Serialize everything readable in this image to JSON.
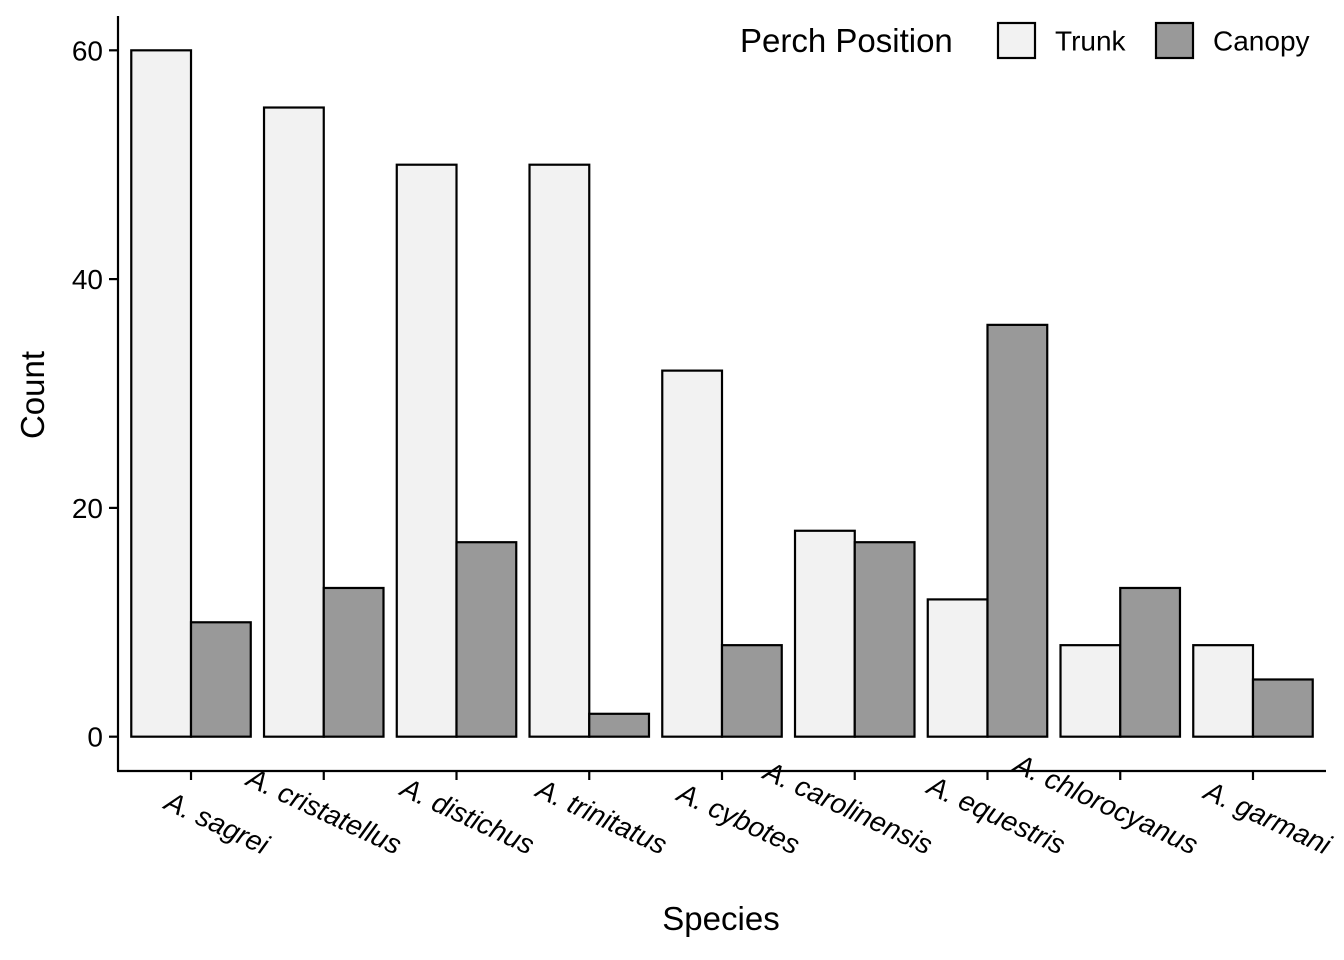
{
  "chart_data": {
    "type": "bar",
    "title": "",
    "xlabel": "Species",
    "ylabel": "Count",
    "ylim": [
      -3,
      63
    ],
    "yticks": [
      0,
      20,
      40,
      60
    ],
    "grid": false,
    "legend": {
      "title": "Perch Position",
      "position": "top-right"
    },
    "categories": [
      "A. sagrei",
      "A. cristatellus",
      "A. distichus",
      "A. trinitatus",
      "A. cybotes",
      "A. carolinensis",
      "A. equestris",
      "A. chlorocyanus",
      "A. garmani"
    ],
    "series": [
      {
        "name": "Trunk",
        "color": "#f2f2f2",
        "values": [
          60,
          55,
          50,
          50,
          32,
          18,
          12,
          8,
          8
        ]
      },
      {
        "name": "Canopy",
        "color": "#999999",
        "values": [
          10,
          13,
          17,
          2,
          8,
          17,
          36,
          13,
          5
        ]
      }
    ]
  }
}
